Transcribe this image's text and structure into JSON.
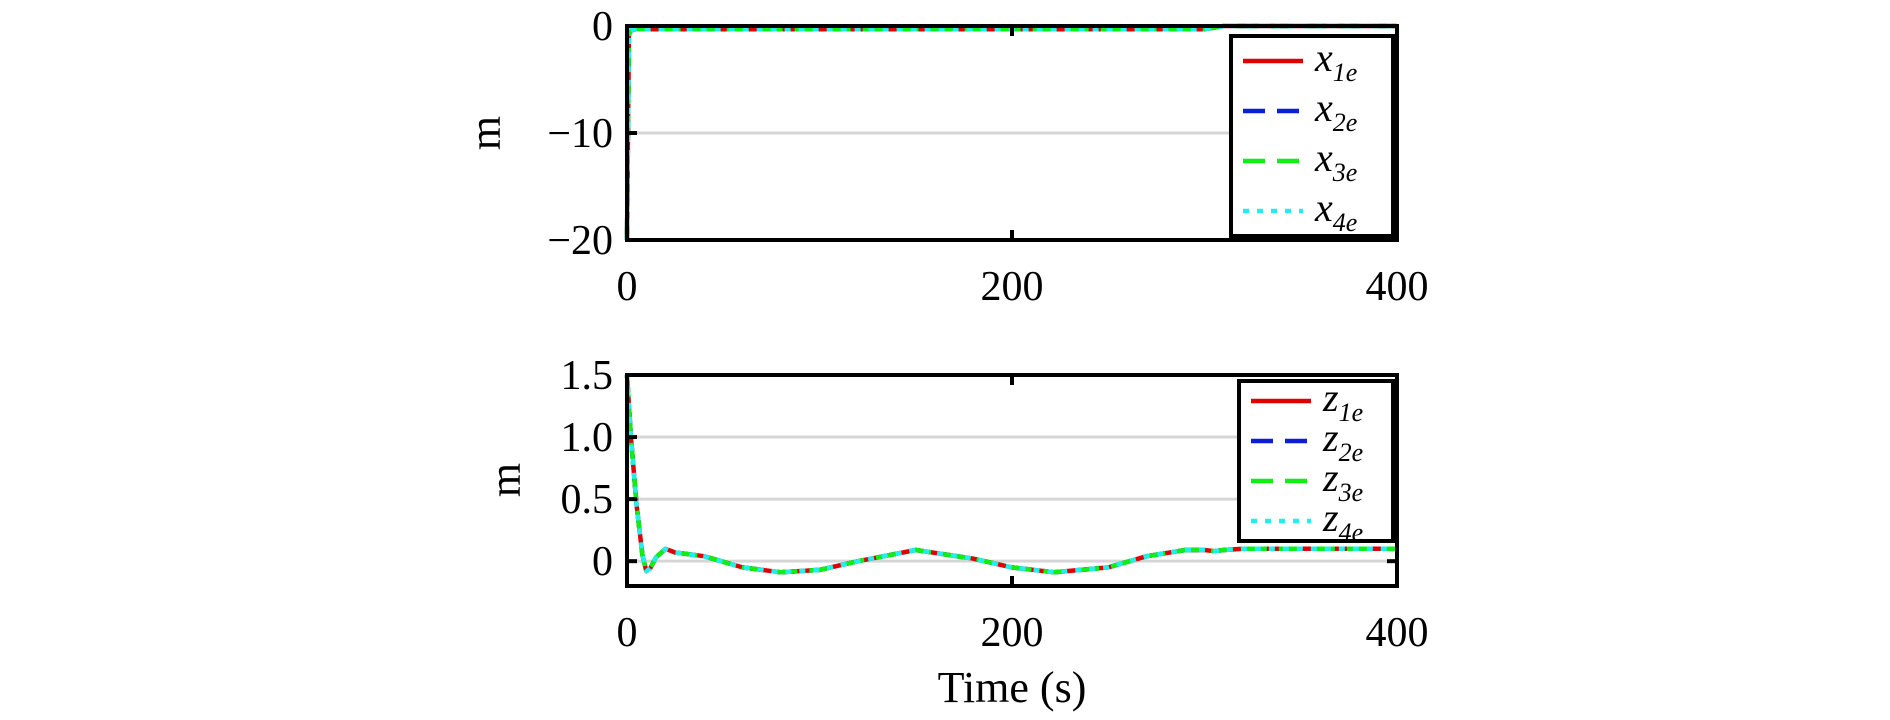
{
  "chart_data": [
    {
      "type": "line",
      "ylabel": "m",
      "xlabel": "",
      "xlim": [
        0,
        400
      ],
      "ylim": [
        -20,
        0
      ],
      "xticks": [
        "0",
        "200",
        "400"
      ],
      "yticks": [
        "0",
        "−10",
        "−20"
      ],
      "grid": "horizontal",
      "legend_position": "right",
      "series": [
        {
          "name": "x",
          "sub": "1e",
          "color": "#e00000",
          "dash": "solid",
          "x": [
            0,
            1,
            2,
            5,
            10,
            50,
            100,
            200,
            300,
            310,
            400
          ],
          "y": [
            -20,
            -0.8,
            -0.4,
            -0.3,
            -0.3,
            -0.3,
            -0.3,
            -0.3,
            -0.3,
            0,
            0
          ]
        },
        {
          "name": "x",
          "sub": "2e",
          "color": "#0a1ed6",
          "dash": "dash",
          "x": [
            0,
            1,
            2,
            5,
            10,
            50,
            100,
            200,
            300,
            310,
            400
          ],
          "y": [
            -20,
            -0.8,
            -0.4,
            -0.3,
            -0.3,
            -0.3,
            -0.3,
            -0.3,
            -0.3,
            0,
            0
          ]
        },
        {
          "name": "x",
          "sub": "3e",
          "color": "#11ee11",
          "dash": "dash",
          "x": [
            0,
            1,
            2,
            5,
            10,
            50,
            100,
            200,
            300,
            310,
            400
          ],
          "y": [
            -20,
            -0.8,
            -0.4,
            -0.3,
            -0.3,
            -0.3,
            -0.3,
            -0.3,
            -0.3,
            0,
            0
          ]
        },
        {
          "name": "x",
          "sub": "4e",
          "color": "#22eeee",
          "dash": "dot",
          "x": [
            0,
            1,
            2,
            5,
            10,
            50,
            100,
            200,
            300,
            310,
            400
          ],
          "y": [
            -20,
            -0.8,
            -0.4,
            -0.3,
            -0.3,
            -0.3,
            -0.3,
            -0.3,
            -0.3,
            0,
            0
          ]
        }
      ]
    },
    {
      "type": "line",
      "ylabel": "m",
      "xlabel": "Time (s)",
      "xlim": [
        0,
        400
      ],
      "ylim": [
        -0.2,
        1.5
      ],
      "xticks": [
        "0",
        "200",
        "400"
      ],
      "yticks": [
        "1.5",
        "1.0",
        "0.5",
        "0"
      ],
      "grid": "horizontal",
      "legend_position": "top-right",
      "series": [
        {
          "name": "z",
          "sub": "1e",
          "color": "#e00000",
          "dash": "solid",
          "x": [
            0,
            2,
            5,
            8,
            10,
            12,
            15,
            20,
            25,
            30,
            40,
            60,
            80,
            100,
            120,
            150,
            180,
            200,
            222,
            250,
            270,
            290,
            300,
            305,
            310,
            320,
            400
          ],
          "y": [
            1.5,
            1.0,
            0.45,
            0.05,
            -0.08,
            -0.06,
            0.03,
            0.1,
            0.07,
            0.06,
            0.04,
            -0.05,
            -0.09,
            -0.07,
            0.0,
            0.09,
            0.02,
            -0.05,
            -0.09,
            -0.05,
            0.04,
            0.09,
            0.09,
            0.08,
            0.09,
            0.1,
            0.1
          ]
        },
        {
          "name": "z",
          "sub": "2e",
          "color": "#0a1ed6",
          "dash": "dash",
          "x": [
            0,
            2,
            5,
            8,
            10,
            12,
            15,
            20,
            25,
            30,
            40,
            60,
            80,
            100,
            120,
            150,
            180,
            200,
            222,
            250,
            270,
            290,
            300,
            305,
            310,
            320,
            400
          ],
          "y": [
            1.5,
            1.0,
            0.45,
            0.05,
            -0.08,
            -0.06,
            0.03,
            0.1,
            0.07,
            0.06,
            0.04,
            -0.05,
            -0.09,
            -0.07,
            0.0,
            0.09,
            0.02,
            -0.05,
            -0.09,
            -0.05,
            0.04,
            0.09,
            0.09,
            0.08,
            0.09,
            0.1,
            0.1
          ]
        },
        {
          "name": "z",
          "sub": "3e",
          "color": "#11ee11",
          "dash": "dash",
          "x": [
            0,
            2,
            5,
            8,
            10,
            12,
            15,
            20,
            25,
            30,
            40,
            60,
            80,
            100,
            120,
            150,
            180,
            200,
            222,
            250,
            270,
            290,
            300,
            305,
            310,
            320,
            400
          ],
          "y": [
            1.5,
            1.0,
            0.45,
            0.05,
            -0.08,
            -0.06,
            0.03,
            0.1,
            0.07,
            0.06,
            0.04,
            -0.05,
            -0.09,
            -0.07,
            0.0,
            0.09,
            0.02,
            -0.05,
            -0.09,
            -0.05,
            0.04,
            0.09,
            0.09,
            0.08,
            0.09,
            0.1,
            0.1
          ]
        },
        {
          "name": "z",
          "sub": "4e",
          "color": "#22eeee",
          "dash": "dot",
          "x": [
            0,
            2,
            5,
            8,
            10,
            12,
            15,
            20,
            25,
            30,
            40,
            60,
            80,
            100,
            120,
            150,
            180,
            200,
            222,
            250,
            270,
            290,
            300,
            305,
            310,
            320,
            400
          ],
          "y": [
            1.5,
            1.0,
            0.45,
            0.05,
            -0.08,
            -0.06,
            0.03,
            0.1,
            0.07,
            0.06,
            0.04,
            -0.05,
            -0.09,
            -0.07,
            0.0,
            0.09,
            0.02,
            -0.05,
            -0.09,
            -0.05,
            0.04,
            0.09,
            0.09,
            0.08,
            0.09,
            0.1,
            0.1
          ]
        }
      ]
    }
  ]
}
